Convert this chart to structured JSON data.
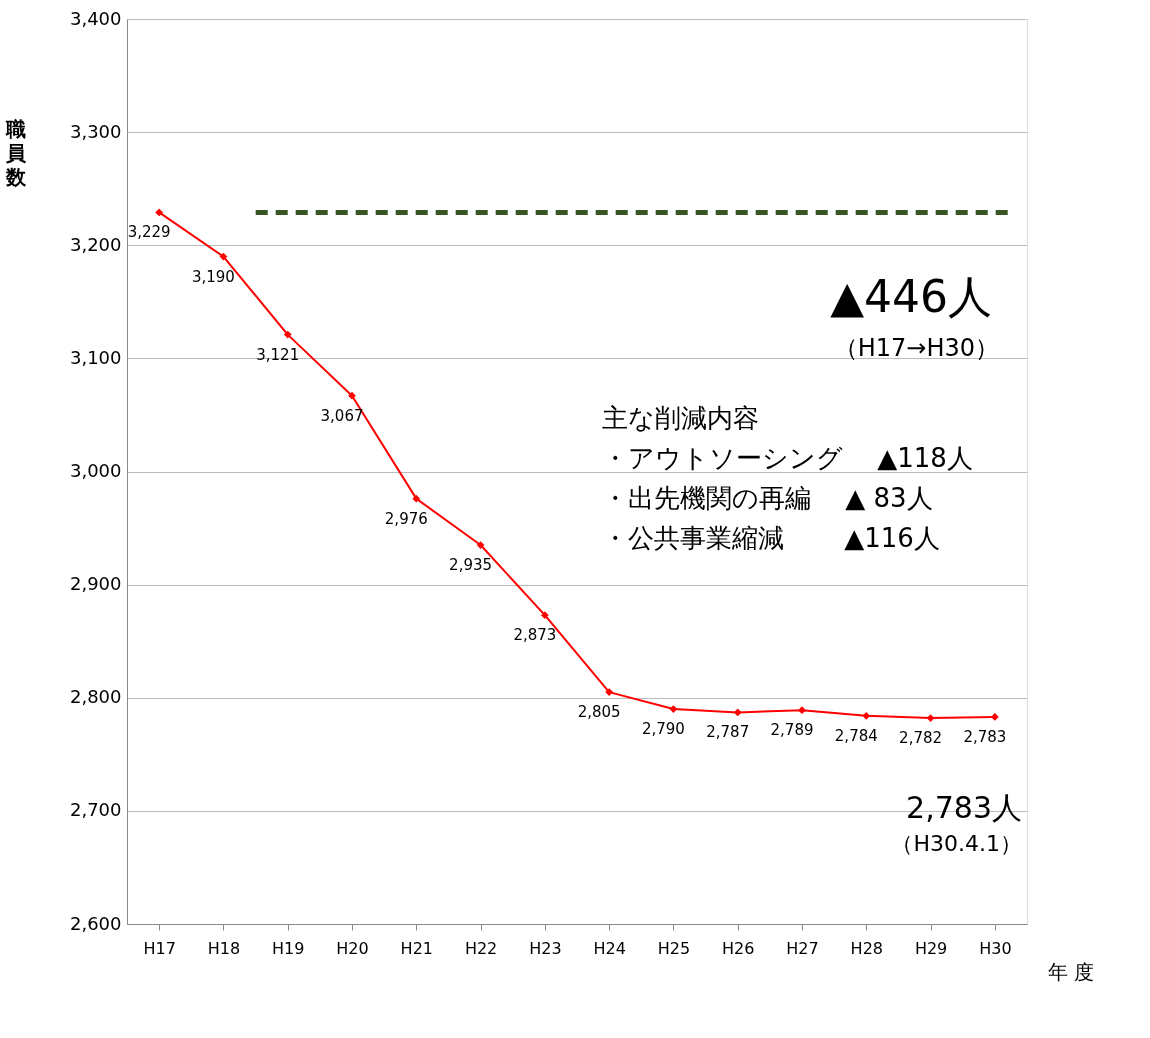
{
  "chart_data": {
    "type": "line",
    "categories": [
      "H17",
      "H18",
      "H19",
      "H20",
      "H21",
      "H22",
      "H23",
      "H24",
      "H25",
      "H26",
      "H27",
      "H28",
      "H29",
      "H30"
    ],
    "series": [
      {
        "color": "#ff0000",
        "values": [
          3229,
          3190,
          3121,
          3067,
          2976,
          2935,
          2873,
          2805,
          2790,
          2787,
          2789,
          2784,
          2782,
          2783
        ]
      }
    ],
    "ylabel": "職員数",
    "xlabel": "年 度",
    "value_labels": [
      "3,229",
      "3,190",
      "3,121",
      "3,067",
      "2,976",
      "2,935",
      "2,873",
      "2,805",
      "2,790",
      "2,787",
      "2,789",
      "2,784",
      "2,782",
      "2,783"
    ],
    "ylim": [
      2600,
      3400
    ],
    "yticks": [
      {
        "value": 2600,
        "label": "2,600"
      },
      {
        "value": 2700,
        "label": "2,700"
      },
      {
        "value": 2800,
        "label": "2,800"
      },
      {
        "value": 2900,
        "label": "2,900"
      },
      {
        "value": 3000,
        "label": "3,000"
      },
      {
        "value": 3100,
        "label": "3,100"
      },
      {
        "value": 3200,
        "label": "3,200"
      },
      {
        "value": 3300,
        "label": "3,300"
      },
      {
        "value": 3400,
        "label": "3,400"
      }
    ],
    "grid": "y",
    "marker": "diamond",
    "line_style": "solid",
    "ref_lines": [
      {
        "axis": "y",
        "value": 3229,
        "color": "#375623",
        "line_style": "dashed"
      }
    ],
    "annotations": [
      "▲446人",
      "（H17→H30）",
      "主な削減内容",
      "・アウトソーシング　 ▲118人",
      "・出先機関の再編　 ▲ 83人",
      "・公共事業縮減　　 ▲116人",
      "2,783人",
      "（H30.4.1）"
    ]
  }
}
